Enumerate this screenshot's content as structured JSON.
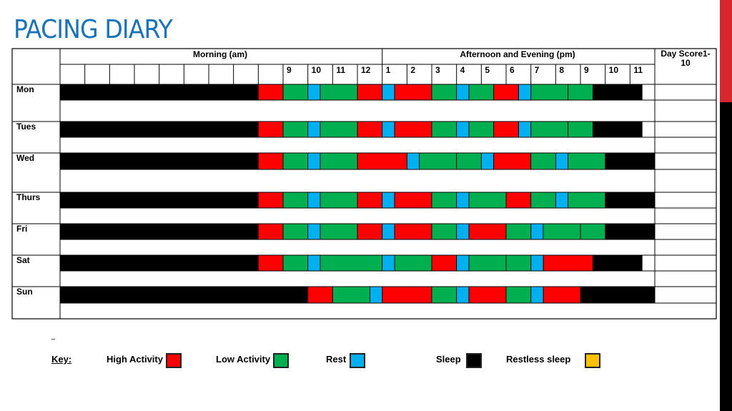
{
  "title": "PACING DIARY",
  "header": {
    "morning": "Morning (am)",
    "afternoon": "Afternoon and Evening (pm)",
    "day_score": "Day Score1-10",
    "hours": [
      "",
      "",
      "",
      "",
      "",
      "",
      "",
      "",
      "",
      "9",
      "10",
      "11",
      "12",
      "1",
      "2",
      "3",
      "4",
      "5",
      "6",
      "7",
      "8",
      "9",
      "10",
      "11"
    ]
  },
  "days": [
    {
      "name": "Mon",
      "segments": [
        [
          "sleep",
          8
        ],
        [
          "high",
          1
        ],
        [
          "low",
          1
        ],
        [
          "rest",
          0.5
        ],
        [
          "low",
          1.5
        ],
        [
          "high",
          1
        ],
        [
          "rest",
          0.5
        ],
        [
          "high",
          1.5
        ],
        [
          "low",
          1
        ],
        [
          "rest",
          0.5
        ],
        [
          "low",
          1
        ],
        [
          "high",
          1
        ],
        [
          "rest",
          0.5
        ],
        [
          "low",
          1.5
        ],
        [
          "low",
          1
        ],
        [
          "sleep",
          2
        ]
      ]
    },
    {
      "name": "Tues",
      "segments": [
        [
          "sleep",
          8
        ],
        [
          "high",
          1
        ],
        [
          "low",
          1
        ],
        [
          "rest",
          0.5
        ],
        [
          "low",
          1.5
        ],
        [
          "high",
          1
        ],
        [
          "rest",
          0.5
        ],
        [
          "high",
          1.5
        ],
        [
          "low",
          1
        ],
        [
          "rest",
          0.5
        ],
        [
          "low",
          1
        ],
        [
          "high",
          1
        ],
        [
          "rest",
          0.5
        ],
        [
          "low",
          1.5
        ],
        [
          "low",
          1
        ],
        [
          "sleep",
          2
        ]
      ]
    },
    {
      "name": "Wed",
      "segments": [
        [
          "sleep",
          8
        ],
        [
          "high",
          1
        ],
        [
          "low",
          1
        ],
        [
          "rest",
          0.5
        ],
        [
          "low",
          1.5
        ],
        [
          "high",
          2
        ],
        [
          "rest",
          0.5
        ],
        [
          "low",
          1.5
        ],
        [
          "low",
          1
        ],
        [
          "rest",
          0.5
        ],
        [
          "high",
          1.5
        ],
        [
          "low",
          1
        ],
        [
          "rest",
          0.5
        ],
        [
          "low",
          1.5
        ],
        [
          "sleep",
          2
        ]
      ]
    },
    {
      "name": "Thurs",
      "segments": [
        [
          "sleep",
          8
        ],
        [
          "high",
          1
        ],
        [
          "low",
          1
        ],
        [
          "rest",
          0.5
        ],
        [
          "low",
          1.5
        ],
        [
          "high",
          1
        ],
        [
          "rest",
          0.5
        ],
        [
          "high",
          1.5
        ],
        [
          "low",
          1
        ],
        [
          "rest",
          0.5
        ],
        [
          "low",
          1.5
        ],
        [
          "high",
          1
        ],
        [
          "low",
          1
        ],
        [
          "rest",
          0.5
        ],
        [
          "low",
          1.5
        ],
        [
          "sleep",
          2
        ]
      ]
    },
    {
      "name": "Fri",
      "segments": [
        [
          "sleep",
          8
        ],
        [
          "high",
          1
        ],
        [
          "low",
          1
        ],
        [
          "rest",
          0.5
        ],
        [
          "low",
          1.5
        ],
        [
          "high",
          1
        ],
        [
          "rest",
          0.5
        ],
        [
          "high",
          1.5
        ],
        [
          "low",
          1
        ],
        [
          "rest",
          0.5
        ],
        [
          "high",
          1.5
        ],
        [
          "low",
          1
        ],
        [
          "rest",
          0.5
        ],
        [
          "low",
          1.5
        ],
        [
          "low",
          1
        ],
        [
          "sleep",
          2
        ]
      ]
    },
    {
      "name": "Sat",
      "segments": [
        [
          "sleep",
          8
        ],
        [
          "high",
          1
        ],
        [
          "low",
          1
        ],
        [
          "rest",
          0.5
        ],
        [
          "low",
          2.5
        ],
        [
          "rest",
          0.5
        ],
        [
          "low",
          1.5
        ],
        [
          "high",
          1
        ],
        [
          "rest",
          0.5
        ],
        [
          "low",
          1.5
        ],
        [
          "low",
          1
        ],
        [
          "rest",
          0.5
        ],
        [
          "high",
          2
        ],
        [
          "sleep",
          2
        ]
      ]
    },
    {
      "name": "Sun",
      "segments": [
        [
          "sleep",
          10
        ],
        [
          "high",
          1
        ],
        [
          "low",
          1.5
        ],
        [
          "rest",
          0.5
        ],
        [
          "high",
          2
        ],
        [
          "low",
          1
        ],
        [
          "rest",
          0.5
        ],
        [
          "high",
          1.5
        ],
        [
          "low",
          1
        ],
        [
          "rest",
          0.5
        ],
        [
          "high",
          1.5
        ],
        [
          "sleep",
          3
        ]
      ]
    }
  ],
  "key": {
    "label": "Key:",
    "high": "High Activity",
    "low": "Low Activity",
    "rest": "Rest",
    "sleep": "Sleep",
    "restless": "Restless sleep"
  },
  "colors": {
    "high": "#ff0000",
    "low": "#00b050",
    "rest": "#00b0f0",
    "sleep": "#000000",
    "restless": "#ffc000",
    "title": "#1a73b8",
    "accent_bar_top": "#d8262e"
  }
}
